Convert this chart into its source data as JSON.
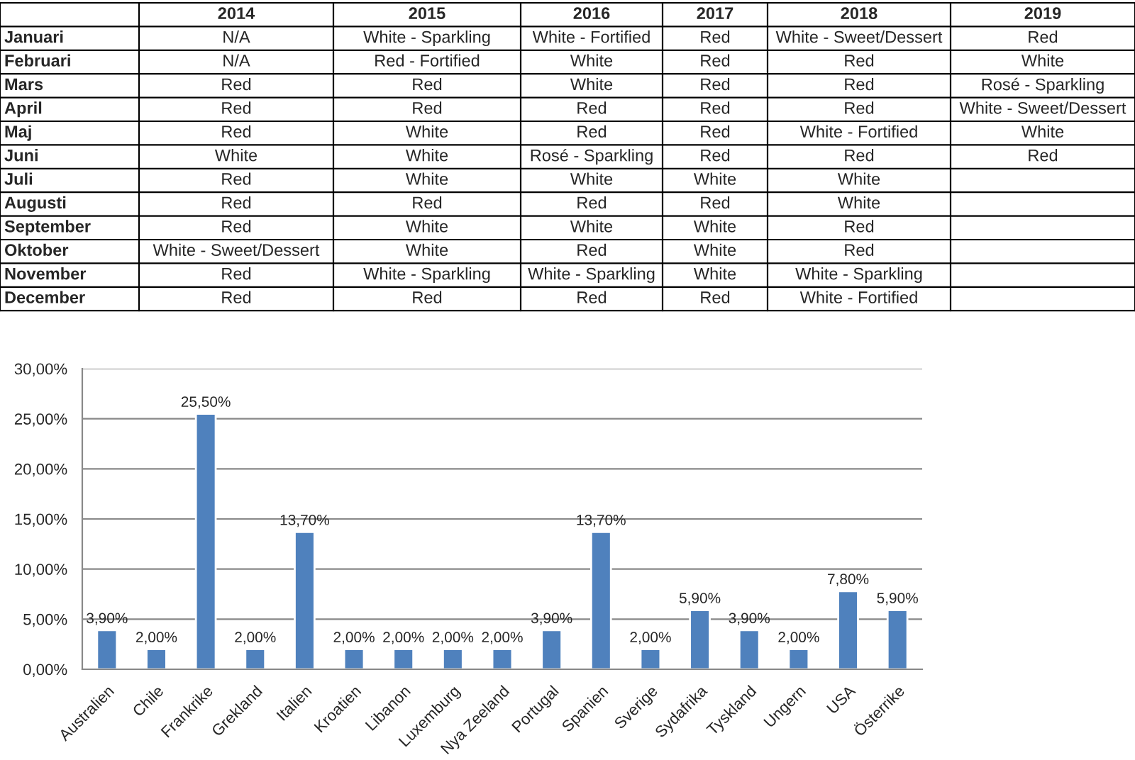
{
  "chart_data": [
    {
      "type": "other",
      "categories": [
        "2014",
        "2015",
        "2016",
        "2017",
        "2018",
        "2019"
      ],
      "y_categories": [
        "Januari",
        "Februari",
        "Mars",
        "April",
        "Maj",
        "Juni",
        "Juli",
        "Augusti",
        "September",
        "Oktober",
        "November",
        "December"
      ],
      "cell_labels": [
        [
          "N/A",
          "White - Sparkling",
          "White - Fortified",
          "Red",
          "White - Sweet/Dessert",
          "Red"
        ],
        [
          "N/A",
          "Red - Fortified",
          "White",
          "Red",
          "Red",
          "White"
        ],
        [
          "Red",
          "Red",
          "White",
          "Red",
          "Red",
          "Rosé - Sparkling"
        ],
        [
          "Red",
          "Red",
          "Red",
          "Red",
          "Red",
          "White - Sweet/Dessert"
        ],
        [
          "Red",
          "White",
          "Red",
          "Red",
          "White - Fortified",
          "White"
        ],
        [
          "White",
          "White",
          "Rosé - Sparkling",
          "Red",
          "Red",
          "Red"
        ],
        [
          "Red",
          "White",
          "White",
          "White",
          "White",
          null
        ],
        [
          "Red",
          "Red",
          "Red",
          "Red",
          "White",
          null
        ],
        [
          "Red",
          "White",
          "White",
          "White",
          "Red",
          null
        ],
        [
          "White - Sweet/Dessert",
          "White",
          "Red",
          "White",
          "Red",
          null
        ],
        [
          "Red",
          "White - Sparkling",
          "White - Sparkling",
          "White",
          "White - Sparkling",
          null
        ],
        [
          "Red",
          "Red",
          "Red",
          "Red",
          "White - Fortified",
          null
        ]
      ]
    },
    {
      "type": "bar",
      "categories": [
        "Australien",
        "Chile",
        "Frankrike",
        "Grekland",
        "Italien",
        "Kroatien",
        "Libanon",
        "Luxemburg",
        "Nya Zeeland",
        "Portugal",
        "Spanien",
        "Sverige",
        "Sydafrika",
        "Tyskland",
        "Ungern",
        "USA",
        "Österrike"
      ],
      "values": [
        3.9,
        2.0,
        25.5,
        2.0,
        13.7,
        2.0,
        2.0,
        2.0,
        2.0,
        3.9,
        13.7,
        2.0,
        5.9,
        3.9,
        2.0,
        7.8,
        5.9
      ],
      "value_labels": [
        "3,90%",
        "2,00%",
        "25,50%",
        "2,00%",
        "13,70%",
        "2,00%",
        "2,00%",
        "2,00%",
        "2,00%",
        "3,90%",
        "13,70%",
        "2,00%",
        "5,90%",
        "3,90%",
        "2,00%",
        "7,80%",
        "5,90%"
      ],
      "color": "#4f81bd",
      "ylim": [
        0,
        30
      ],
      "yticks": [
        {
          "value": 0,
          "label": "0,00%"
        },
        {
          "value": 5,
          "label": "5,00%"
        },
        {
          "value": 10,
          "label": "10,00%"
        },
        {
          "value": 15,
          "label": "15,00%"
        },
        {
          "value": 20,
          "label": "20,00%"
        },
        {
          "value": 25,
          "label": "25,00%"
        },
        {
          "value": 30,
          "label": "30,00%"
        }
      ],
      "grid": "y"
    }
  ]
}
